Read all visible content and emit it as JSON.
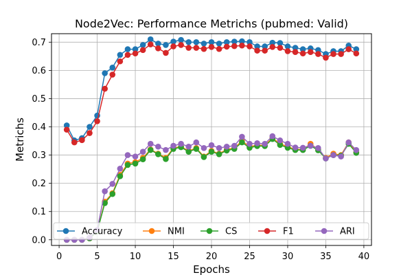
{
  "chart_data": {
    "type": "line",
    "title": "Node2Vec: Performance Metrichs (pubmed: Valid)",
    "xlabel": "Epochs",
    "ylabel": "Metrichs",
    "xlim": [
      -1,
      41
    ],
    "ylim": [
      -0.02,
      0.73
    ],
    "xticks": [
      0,
      5,
      10,
      15,
      20,
      25,
      30,
      35,
      40
    ],
    "xtick_labels": [
      "0",
      "5",
      "10",
      "15",
      "20",
      "25",
      "30",
      "35",
      "40"
    ],
    "yticks": [
      0.0,
      0.1,
      0.2,
      0.3,
      0.4,
      0.5,
      0.6,
      0.7
    ],
    "ytick_labels": [
      "0.0",
      "0.1",
      "0.2",
      "0.3",
      "0.4",
      "0.5",
      "0.6",
      "0.7"
    ],
    "grid": true,
    "legend_position": "lower center",
    "x": [
      1,
      2,
      3,
      4,
      5,
      6,
      7,
      8,
      9,
      10,
      11,
      12,
      13,
      14,
      15,
      16,
      17,
      18,
      19,
      20,
      21,
      22,
      23,
      24,
      25,
      26,
      27,
      28,
      29,
      30,
      31,
      32,
      33,
      34,
      35,
      36,
      37,
      38,
      39
    ],
    "series": [
      {
        "name": "Accuracy",
        "color": "#1f77b4",
        "values": [
          0.405,
          0.352,
          0.36,
          0.4,
          0.44,
          0.59,
          0.61,
          0.655,
          0.675,
          0.675,
          0.69,
          0.71,
          0.695,
          0.69,
          0.702,
          0.708,
          0.7,
          0.7,
          0.695,
          0.7,
          0.695,
          0.7,
          0.702,
          0.703,
          0.7,
          0.685,
          0.685,
          0.698,
          0.697,
          0.685,
          0.68,
          0.675,
          0.678,
          0.672,
          0.658,
          0.668,
          0.668,
          0.688,
          0.675
        ]
      },
      {
        "name": "NMI",
        "color": "#ff7f0e",
        "values": [
          0.0,
          0.0,
          0.0,
          0.005,
          0.03,
          0.135,
          0.165,
          0.23,
          0.27,
          0.275,
          0.29,
          0.32,
          0.305,
          0.29,
          0.325,
          0.33,
          0.315,
          0.325,
          0.295,
          0.315,
          0.305,
          0.32,
          0.325,
          0.35,
          0.33,
          0.335,
          0.335,
          0.36,
          0.34,
          0.33,
          0.32,
          0.32,
          0.34,
          0.32,
          0.29,
          0.305,
          0.3,
          0.345,
          0.31
        ]
      },
      {
        "name": "CS",
        "color": "#2ca02c",
        "values": [
          0.0,
          0.0,
          0.0,
          0.005,
          0.03,
          0.13,
          0.162,
          0.225,
          0.265,
          0.27,
          0.285,
          0.318,
          0.303,
          0.286,
          0.322,
          0.328,
          0.312,
          0.322,
          0.293,
          0.312,
          0.303,
          0.316,
          0.322,
          0.345,
          0.326,
          0.332,
          0.332,
          0.357,
          0.336,
          0.326,
          0.318,
          0.318,
          0.333,
          0.317,
          0.288,
          0.3,
          0.298,
          0.34,
          0.308
        ]
      },
      {
        "name": "F1",
        "color": "#d62728",
        "values": [
          0.39,
          0.345,
          0.353,
          0.378,
          0.42,
          0.535,
          0.585,
          0.632,
          0.655,
          0.66,
          0.672,
          0.692,
          0.678,
          0.662,
          0.685,
          0.69,
          0.68,
          0.68,
          0.676,
          0.683,
          0.676,
          0.684,
          0.686,
          0.688,
          0.685,
          0.67,
          0.67,
          0.683,
          0.68,
          0.668,
          0.665,
          0.66,
          0.665,
          0.658,
          0.645,
          0.658,
          0.658,
          0.675,
          0.66
        ]
      },
      {
        "name": "ARI",
        "color": "#9467bd",
        "values": [
          0.0,
          0.0,
          0.0,
          0.008,
          0.035,
          0.172,
          0.198,
          0.252,
          0.3,
          0.295,
          0.312,
          0.34,
          0.33,
          0.318,
          0.333,
          0.34,
          0.33,
          0.345,
          0.325,
          0.335,
          0.325,
          0.33,
          0.333,
          0.365,
          0.34,
          0.342,
          0.34,
          0.367,
          0.352,
          0.34,
          0.327,
          0.326,
          0.333,
          0.325,
          0.288,
          0.3,
          0.295,
          0.345,
          0.318
        ]
      }
    ]
  }
}
